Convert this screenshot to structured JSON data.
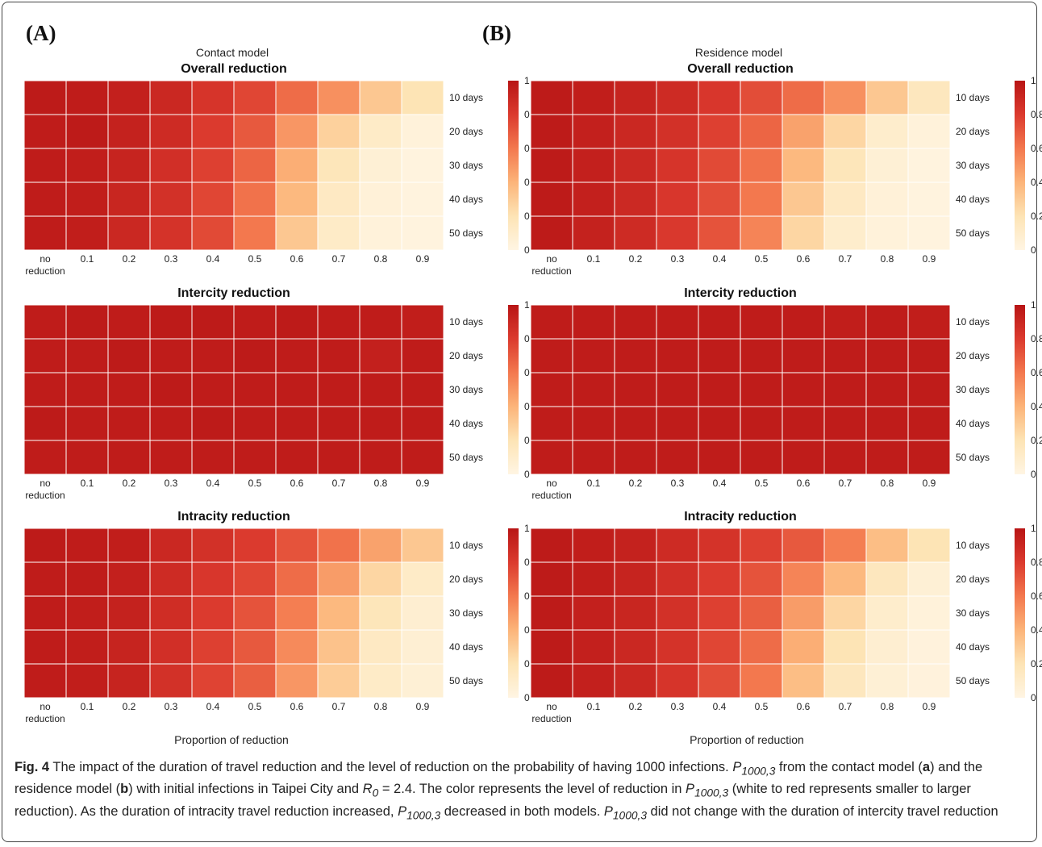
{
  "panels": [
    {
      "label": "(A)",
      "model_title": "Contact model",
      "xlabel": "Proportion of reduction"
    },
    {
      "label": "(B)",
      "model_title": "Residence model",
      "xlabel": "Proportion of reduction"
    }
  ],
  "colorbar_ticks": [
    "0",
    "0.2",
    "0.4",
    "0.6",
    "0.8",
    "1"
  ],
  "chart_data": [
    {
      "type": "heatmap",
      "panel": "A",
      "title": "Overall reduction",
      "x": [
        "no reduction",
        "0.1",
        "0.2",
        "0.3",
        "0.4",
        "0.5",
        "0.6",
        "0.7",
        "0.8",
        "0.9"
      ],
      "y": [
        "10 days",
        "20 days",
        "30 days",
        "40 days",
        "50 days"
      ],
      "xlabel": "",
      "colorbar_range": [
        0,
        1
      ],
      "values": [
        [
          0.97,
          0.96,
          0.94,
          0.9,
          0.83,
          0.76,
          0.64,
          0.52,
          0.32,
          0.2
        ],
        [
          0.96,
          0.97,
          0.93,
          0.88,
          0.8,
          0.7,
          0.5,
          0.28,
          0.12,
          0.04
        ],
        [
          0.96,
          0.95,
          0.92,
          0.86,
          0.78,
          0.66,
          0.42,
          0.18,
          0.06,
          0.02
        ],
        [
          0.96,
          0.95,
          0.91,
          0.85,
          0.76,
          0.62,
          0.38,
          0.14,
          0.05,
          0.02
        ],
        [
          0.96,
          0.95,
          0.9,
          0.84,
          0.75,
          0.6,
          0.32,
          0.12,
          0.04,
          0.02
        ]
      ]
    },
    {
      "type": "heatmap",
      "panel": "A",
      "title": "Intercity reduction",
      "x": [
        "no reduction",
        "0.1",
        "0.2",
        "0.3",
        "0.4",
        "0.5",
        "0.6",
        "0.7",
        "0.8",
        "0.9"
      ],
      "y": [
        "10 days",
        "20 days",
        "30 days",
        "40 days",
        "50 days"
      ],
      "xlabel": "",
      "colorbar_range": [
        0,
        1
      ],
      "values": [
        [
          0.96,
          0.97,
          0.96,
          0.97,
          0.97,
          0.96,
          0.97,
          0.96,
          0.96,
          0.95
        ],
        [
          0.96,
          0.96,
          0.97,
          0.96,
          0.96,
          0.97,
          0.96,
          0.96,
          0.94,
          0.96
        ],
        [
          0.96,
          0.96,
          0.96,
          0.97,
          0.96,
          0.96,
          0.96,
          0.96,
          0.96,
          0.96
        ],
        [
          0.97,
          0.96,
          0.96,
          0.96,
          0.97,
          0.96,
          0.96,
          0.96,
          0.96,
          0.96
        ],
        [
          0.96,
          0.96,
          0.96,
          0.96,
          0.96,
          0.96,
          0.96,
          0.96,
          0.96,
          0.96
        ]
      ]
    },
    {
      "type": "heatmap",
      "panel": "A",
      "title": "Intracity reduction",
      "x": [
        "no reduction",
        "0.1",
        "0.2",
        "0.3",
        "0.4",
        "0.5",
        "0.6",
        "0.7",
        "0.8",
        "0.9"
      ],
      "y": [
        "10 days",
        "20 days",
        "30 days",
        "40 days",
        "50 days"
      ],
      "xlabel": "Proportion of reduction",
      "colorbar_range": [
        0,
        1
      ],
      "values": [
        [
          0.97,
          0.96,
          0.95,
          0.9,
          0.85,
          0.8,
          0.72,
          0.62,
          0.46,
          0.32
        ],
        [
          0.96,
          0.96,
          0.94,
          0.88,
          0.82,
          0.76,
          0.64,
          0.48,
          0.26,
          0.12
        ],
        [
          0.96,
          0.95,
          0.93,
          0.87,
          0.8,
          0.72,
          0.58,
          0.38,
          0.18,
          0.08
        ],
        [
          0.96,
          0.95,
          0.92,
          0.86,
          0.78,
          0.7,
          0.54,
          0.34,
          0.14,
          0.07
        ],
        [
          0.96,
          0.95,
          0.92,
          0.85,
          0.77,
          0.68,
          0.5,
          0.3,
          0.12,
          0.06
        ]
      ]
    },
    {
      "type": "heatmap",
      "panel": "B",
      "title": "Overall reduction",
      "x": [
        "no reduction",
        "0.1",
        "0.2",
        "0.3",
        "0.4",
        "0.5",
        "0.6",
        "0.7",
        "0.8",
        "0.9"
      ],
      "y": [
        "10 days",
        "20 days",
        "30 days",
        "40 days",
        "50 days"
      ],
      "xlabel": "",
      "colorbar_range": [
        0,
        1
      ],
      "values": [
        [
          0.97,
          0.95,
          0.92,
          0.88,
          0.82,
          0.74,
          0.64,
          0.52,
          0.32,
          0.16
        ],
        [
          0.97,
          0.94,
          0.9,
          0.85,
          0.78,
          0.66,
          0.46,
          0.26,
          0.1,
          0.04
        ],
        [
          0.97,
          0.94,
          0.89,
          0.83,
          0.75,
          0.62,
          0.38,
          0.18,
          0.06,
          0.02
        ],
        [
          0.97,
          0.94,
          0.89,
          0.82,
          0.74,
          0.6,
          0.32,
          0.14,
          0.05,
          0.02
        ],
        [
          0.97,
          0.93,
          0.88,
          0.81,
          0.72,
          0.56,
          0.26,
          0.1,
          0.04,
          0.02
        ]
      ]
    },
    {
      "type": "heatmap",
      "panel": "B",
      "title": "Intercity reduction",
      "x": [
        "no reduction",
        "0.1",
        "0.2",
        "0.3",
        "0.4",
        "0.5",
        "0.6",
        "0.7",
        "0.8",
        "0.9"
      ],
      "y": [
        "10 days",
        "20 days",
        "30 days",
        "40 days",
        "50 days"
      ],
      "xlabel": "",
      "colorbar_range": [
        0,
        1
      ],
      "values": [
        [
          0.96,
          0.96,
          0.96,
          0.96,
          0.96,
          0.96,
          0.96,
          0.95,
          0.96,
          0.95
        ],
        [
          0.96,
          0.96,
          0.96,
          0.96,
          0.96,
          0.96,
          0.96,
          0.96,
          0.96,
          0.96
        ],
        [
          0.96,
          0.96,
          0.96,
          0.96,
          0.96,
          0.96,
          0.96,
          0.96,
          0.96,
          0.96
        ],
        [
          0.96,
          0.96,
          0.96,
          0.96,
          0.96,
          0.96,
          0.96,
          0.96,
          0.96,
          0.96
        ],
        [
          0.96,
          0.96,
          0.96,
          0.96,
          0.96,
          0.96,
          0.96,
          0.96,
          0.96,
          0.96
        ]
      ]
    },
    {
      "type": "heatmap",
      "panel": "B",
      "title": "Intracity reduction",
      "x": [
        "no reduction",
        "0.1",
        "0.2",
        "0.3",
        "0.4",
        "0.5",
        "0.6",
        "0.7",
        "0.8",
        "0.9"
      ],
      "y": [
        "10 days",
        "20 days",
        "30 days",
        "40 days",
        "50 days"
      ],
      "xlabel": "Proportion of reduction",
      "colorbar_range": [
        0,
        1
      ],
      "values": [
        [
          0.97,
          0.95,
          0.93,
          0.88,
          0.84,
          0.78,
          0.7,
          0.58,
          0.36,
          0.2
        ],
        [
          0.97,
          0.95,
          0.92,
          0.86,
          0.8,
          0.72,
          0.56,
          0.38,
          0.16,
          0.06
        ],
        [
          0.97,
          0.94,
          0.91,
          0.85,
          0.78,
          0.68,
          0.48,
          0.26,
          0.1,
          0.04
        ],
        [
          0.97,
          0.94,
          0.9,
          0.84,
          0.76,
          0.64,
          0.42,
          0.2,
          0.08,
          0.03
        ],
        [
          0.97,
          0.94,
          0.9,
          0.83,
          0.74,
          0.6,
          0.36,
          0.16,
          0.06,
          0.03
        ]
      ]
    }
  ],
  "caption": {
    "fig_label": "Fig. 4",
    "t1": " The impact of the duration of travel reduction and the level of reduction on the probability of having 1000 infections. ",
    "p_base": "P",
    "p_sub": "1000,3",
    "t2": " from the contact model (",
    "a": "a",
    "t3": ") and the residence model (",
    "b": "b",
    "t4": ") with initial infections in Taipei City and ",
    "r_base": "R",
    "r_sub": "0",
    "t5": " = 2.4. The color represents the level of reduction in ",
    "t6": " (white to red represents smaller to larger reduction). As the duration of intracity travel reduction increased, ",
    "t7": " decreased in both models. ",
    "t8": " did not change with the duration of intercity travel reduction"
  }
}
